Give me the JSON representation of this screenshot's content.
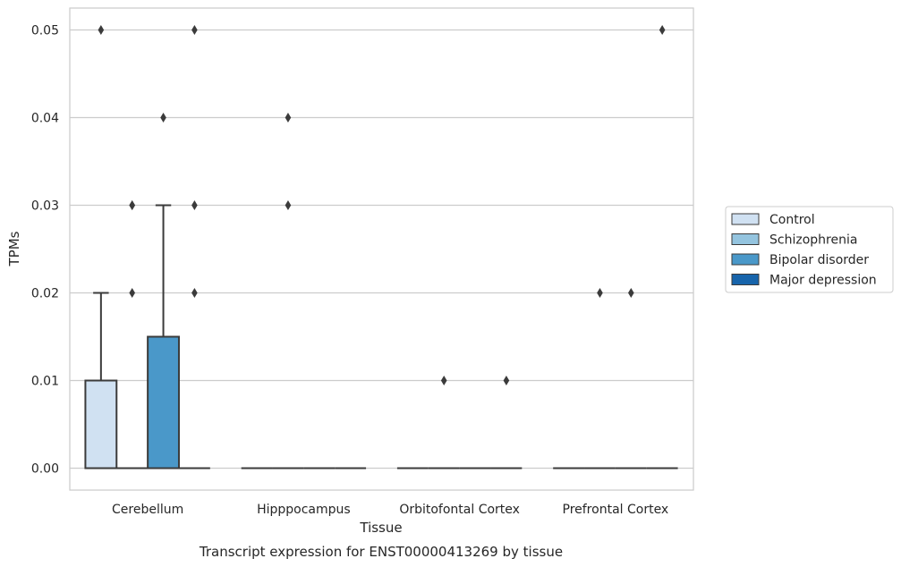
{
  "chart_data": {
    "type": "box",
    "title": "",
    "caption": "Transcript expression for ENST00000413269 by tissue",
    "xlabel": "Tissue",
    "ylabel": "TPMs",
    "ylim": [
      -0.0025,
      0.0525
    ],
    "yticks": [
      "0.00",
      "0.01",
      "0.02",
      "0.03",
      "0.04",
      "0.05"
    ],
    "ytick_values": [
      0,
      0.01,
      0.02,
      0.03,
      0.04,
      0.05
    ],
    "grid": true,
    "legend_position": "right",
    "categories": [
      "Cerebellum",
      "Hipppocampus",
      "Orbitofontal Cortex",
      "Prefrontal Cortex"
    ],
    "series": [
      {
        "name": "Control",
        "color": "#d0e1f2",
        "boxes": [
          {
            "q1": 0,
            "median": 0,
            "q3": 0.01,
            "whisker_low": 0,
            "whisker_high": 0.02,
            "outliers": [
              0.05
            ]
          },
          {
            "q1": 0,
            "median": 0,
            "q3": 0,
            "whisker_low": 0,
            "whisker_high": 0,
            "outliers": []
          },
          {
            "q1": 0,
            "median": 0,
            "q3": 0,
            "whisker_low": 0,
            "whisker_high": 0,
            "outliers": []
          },
          {
            "q1": 0,
            "median": 0,
            "q3": 0,
            "whisker_low": 0,
            "whisker_high": 0,
            "outliers": []
          }
        ]
      },
      {
        "name": "Schizophrenia",
        "color": "#94c4df",
        "boxes": [
          {
            "q1": 0,
            "median": 0,
            "q3": 0,
            "whisker_low": 0,
            "whisker_high": 0,
            "outliers": [
              0.02,
              0.03,
              0.03
            ]
          },
          {
            "q1": 0,
            "median": 0,
            "q3": 0,
            "whisker_low": 0,
            "whisker_high": 0,
            "outliers": [
              0.03,
              0.04
            ]
          },
          {
            "q1": 0,
            "median": 0,
            "q3": 0,
            "whisker_low": 0,
            "whisker_high": 0,
            "outliers": [
              0.01
            ]
          },
          {
            "q1": 0,
            "median": 0,
            "q3": 0,
            "whisker_low": 0,
            "whisker_high": 0,
            "outliers": [
              0.02
            ]
          }
        ]
      },
      {
        "name": "Bipolar disorder",
        "color": "#4a98c9",
        "boxes": [
          {
            "q1": 0,
            "median": 0,
            "q3": 0.015,
            "whisker_low": 0,
            "whisker_high": 0.03,
            "outliers": [
              0.04
            ]
          },
          {
            "q1": 0,
            "median": 0,
            "q3": 0,
            "whisker_low": 0,
            "whisker_high": 0,
            "outliers": []
          },
          {
            "q1": 0,
            "median": 0,
            "q3": 0,
            "whisker_low": 0,
            "whisker_high": 0,
            "outliers": []
          },
          {
            "q1": 0,
            "median": 0,
            "q3": 0,
            "whisker_low": 0,
            "whisker_high": 0,
            "outliers": [
              0.02
            ]
          }
        ]
      },
      {
        "name": "Major depression",
        "color": "#1764ab",
        "boxes": [
          {
            "q1": 0,
            "median": 0,
            "q3": 0,
            "whisker_low": 0,
            "whisker_high": 0,
            "outliers": [
              0.02,
              0.03,
              0.05
            ]
          },
          {
            "q1": 0,
            "median": 0,
            "q3": 0,
            "whisker_low": 0,
            "whisker_high": 0,
            "outliers": []
          },
          {
            "q1": 0,
            "median": 0,
            "q3": 0,
            "whisker_low": 0,
            "whisker_high": 0,
            "outliers": [
              0.01
            ]
          },
          {
            "q1": 0,
            "median": 0,
            "q3": 0,
            "whisker_low": 0,
            "whisker_high": 0,
            "outliers": [
              0.05
            ]
          }
        ]
      }
    ]
  }
}
